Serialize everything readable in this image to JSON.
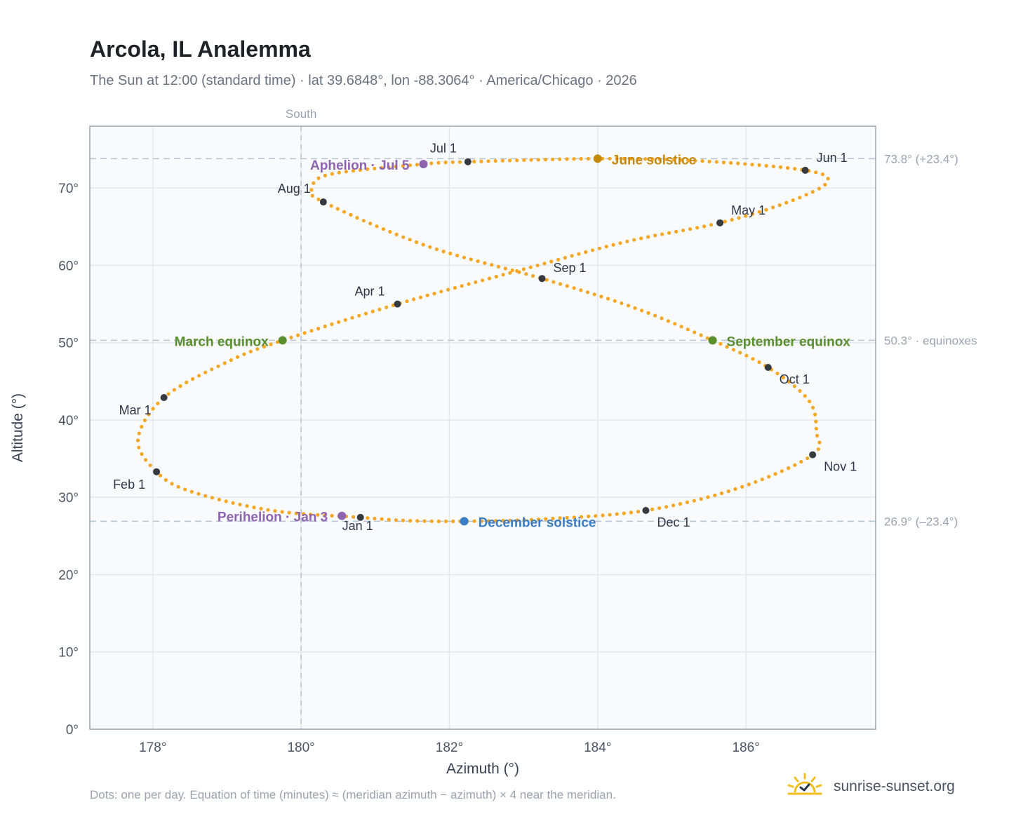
{
  "header": {
    "title": "Arcola, IL Analemma",
    "subtitle": "The Sun at 12:00 (standard time) · lat 39.6848°, lon -88.3064° · America/Chicago · 2026"
  },
  "footer": {
    "note": "Dots: one per day. Equation of time (minutes) ≈ (meridian azimuth − azimuth) × 4 near the meridian.",
    "brand": "sunrise-sunset.org",
    "brand_icon": "sun-check-icon"
  },
  "colors": {
    "analemma": "#f5a623",
    "month_marker": "#343a40",
    "june_solstice": "#c58a0a",
    "december_solstice": "#3b7dc4",
    "equinox": "#5a8f2e",
    "apsis": "#8e63b0",
    "reference_line": "#b6c3d1",
    "plot_bg": "#f8fafc",
    "plot_border": "#9aa3b0"
  },
  "chart_data": {
    "type": "scatter",
    "title": "Arcola, IL Analemma",
    "xlabel": "Azimuth (°)",
    "ylabel": "Altitude (°)",
    "xlim": [
      177.15,
      187.75
    ],
    "ylim": [
      0,
      78
    ],
    "x_ticks": [
      178,
      180,
      182,
      184,
      186
    ],
    "x_tick_labels": [
      "178°",
      "180°",
      "182°",
      "184°",
      "186°"
    ],
    "y_ticks": [
      0,
      10,
      20,
      30,
      40,
      50,
      60,
      70
    ],
    "y_tick_labels": [
      "0°",
      "10°",
      "20°",
      "30°",
      "40°",
      "50°",
      "60°",
      "70°"
    ],
    "grid": true,
    "analemma_anchor_points": [
      {
        "az": 180.8,
        "alt": 27.4
      },
      {
        "az": 179.6,
        "alt": 28.3
      },
      {
        "az": 178.5,
        "alt": 30.8
      },
      {
        "az": 178.05,
        "alt": 33.3
      },
      {
        "az": 177.8,
        "alt": 37.5
      },
      {
        "az": 178.15,
        "alt": 42.9
      },
      {
        "az": 179.0,
        "alt": 47.5
      },
      {
        "az": 179.75,
        "alt": 50.3
      },
      {
        "az": 181.3,
        "alt": 55.0
      },
      {
        "az": 183.0,
        "alt": 59.5
      },
      {
        "az": 184.4,
        "alt": 63.1
      },
      {
        "az": 185.65,
        "alt": 65.5
      },
      {
        "az": 186.6,
        "alt": 68.3
      },
      {
        "az": 187.1,
        "alt": 70.8
      },
      {
        "az": 186.8,
        "alt": 72.3
      },
      {
        "az": 185.4,
        "alt": 73.5
      },
      {
        "az": 184.0,
        "alt": 73.8
      },
      {
        "az": 182.25,
        "alt": 73.4
      },
      {
        "az": 181.65,
        "alt": 73.1
      },
      {
        "az": 180.4,
        "alt": 71.8
      },
      {
        "az": 180.15,
        "alt": 70.0
      },
      {
        "az": 180.3,
        "alt": 68.2
      },
      {
        "az": 181.7,
        "alt": 62.5
      },
      {
        "az": 183.25,
        "alt": 58.3
      },
      {
        "az": 184.5,
        "alt": 54.5
      },
      {
        "az": 185.55,
        "alt": 50.3
      },
      {
        "az": 186.3,
        "alt": 46.8
      },
      {
        "az": 186.85,
        "alt": 42.5
      },
      {
        "az": 186.95,
        "alt": 38.5
      },
      {
        "az": 186.9,
        "alt": 35.5
      },
      {
        "az": 185.9,
        "alt": 31.2
      },
      {
        "az": 184.65,
        "alt": 28.3
      },
      {
        "az": 183.3,
        "alt": 27.2
      },
      {
        "az": 182.2,
        "alt": 26.9
      },
      {
        "az": 181.4,
        "alt": 27.0
      },
      {
        "az": 180.8,
        "alt": 27.4
      }
    ],
    "month_markers": [
      {
        "label": "Jan 1",
        "az": 180.8,
        "alt": 27.4
      },
      {
        "label": "Feb 1",
        "az": 178.05,
        "alt": 33.3
      },
      {
        "label": "Mar 1",
        "az": 178.15,
        "alt": 42.9
      },
      {
        "label": "Apr 1",
        "az": 181.3,
        "alt": 55.0
      },
      {
        "label": "May 1",
        "az": 185.65,
        "alt": 65.5
      },
      {
        "label": "Jun 1",
        "az": 186.8,
        "alt": 72.3
      },
      {
        "label": "Jul 1",
        "az": 182.25,
        "alt": 73.4
      },
      {
        "label": "Aug 1",
        "az": 180.3,
        "alt": 68.2
      },
      {
        "label": "Sep 1",
        "az": 183.25,
        "alt": 58.3
      },
      {
        "label": "Oct 1",
        "az": 186.3,
        "alt": 46.8
      },
      {
        "label": "Nov 1",
        "az": 186.9,
        "alt": 35.5
      },
      {
        "label": "Dec 1",
        "az": 184.65,
        "alt": 28.3
      }
    ],
    "events": [
      {
        "label": "June solstice",
        "az": 184.0,
        "alt": 73.8,
        "kind": "june_solstice"
      },
      {
        "label": "December solstice",
        "az": 182.2,
        "alt": 26.9,
        "kind": "december_solstice"
      },
      {
        "label": "March equinox",
        "az": 179.75,
        "alt": 50.3,
        "kind": "equinox"
      },
      {
        "label": "September equinox",
        "az": 185.55,
        "alt": 50.3,
        "kind": "equinox"
      },
      {
        "label": "Aphelion · Jul 5",
        "az": 181.65,
        "alt": 73.1,
        "kind": "apsis"
      },
      {
        "label": "Perihelion · Jan 3",
        "az": 180.55,
        "alt": 27.6,
        "kind": "apsis"
      }
    ],
    "reference_lines": {
      "south": {
        "label": "South",
        "az": 180
      },
      "horizontal": [
        {
          "alt": 73.8,
          "label": "73.8° (+23.4°)"
        },
        {
          "alt": 50.3,
          "label": "50.3° · equinoxes"
        },
        {
          "alt": 26.9,
          "label": "26.9° (–23.4°)"
        }
      ]
    }
  }
}
